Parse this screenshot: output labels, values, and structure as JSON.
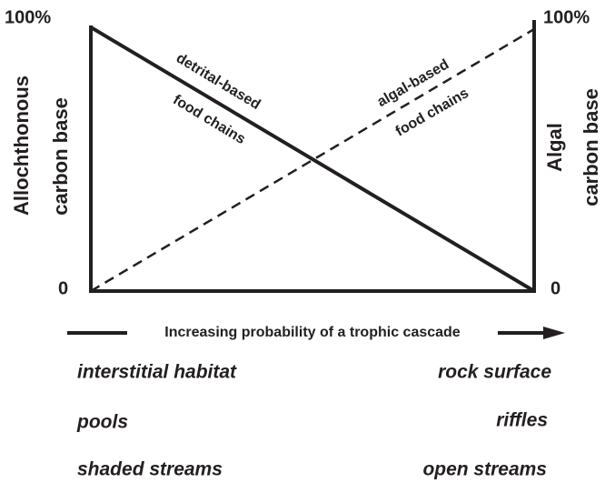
{
  "left_axis": {
    "top": "100%",
    "bottom": "0",
    "label": [
      "Allochthonous",
      "carbon base"
    ]
  },
  "right_axis": {
    "top": "100%",
    "bottom": "0",
    "label": [
      "Algal",
      "carbon base"
    ]
  },
  "lines": [
    {
      "label": [
        "detrital-based",
        "food chains"
      ]
    },
    {
      "label": [
        "algal-based",
        "food chains"
      ]
    }
  ],
  "arrow_label": "Increasing probability of a trophic cascade",
  "habitats": {
    "left": [
      "interstitial habitat",
      "pools",
      "shaded streams"
    ],
    "right": [
      "rock surface",
      "riffles",
      "open streams"
    ]
  }
}
